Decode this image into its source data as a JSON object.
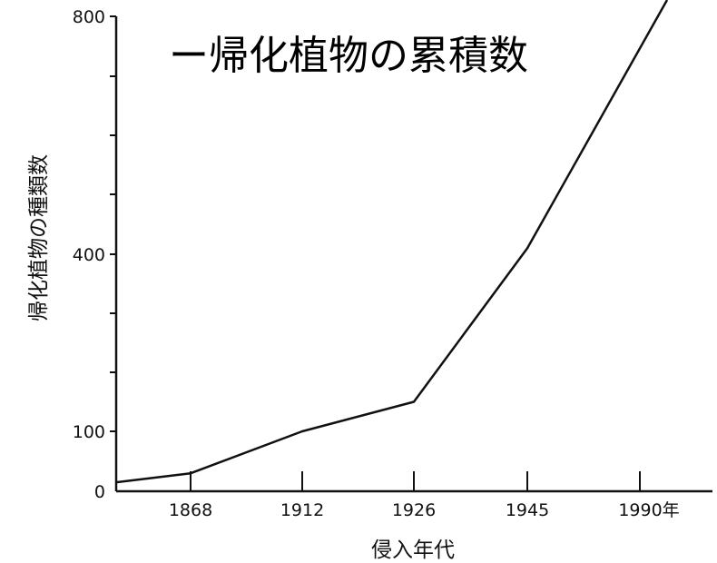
{
  "chart_data": {
    "type": "line",
    "title": "ー帰化植物の累積数",
    "xlabel": "侵入年代",
    "ylabel": "帰化植物の種類数",
    "x_ticks": [
      "1868",
      "1912",
      "1926",
      "1945",
      "1990年"
    ],
    "y_ticks": [
      "0",
      "100",
      "400",
      "800"
    ],
    "y_scale": "non-linear (labeled ticks at 0, 100, 400, 800)",
    "grid": false,
    "series": [
      {
        "points": [
          {
            "x": "1850",
            "y": 15
          },
          {
            "x": "1868",
            "y": 30
          },
          {
            "x": "1912",
            "y": 100
          },
          {
            "x": "1926",
            "y": 150
          },
          {
            "x": "1945",
            "y": 410
          },
          {
            "x": "1990",
            "y": 800
          }
        ]
      }
    ]
  }
}
